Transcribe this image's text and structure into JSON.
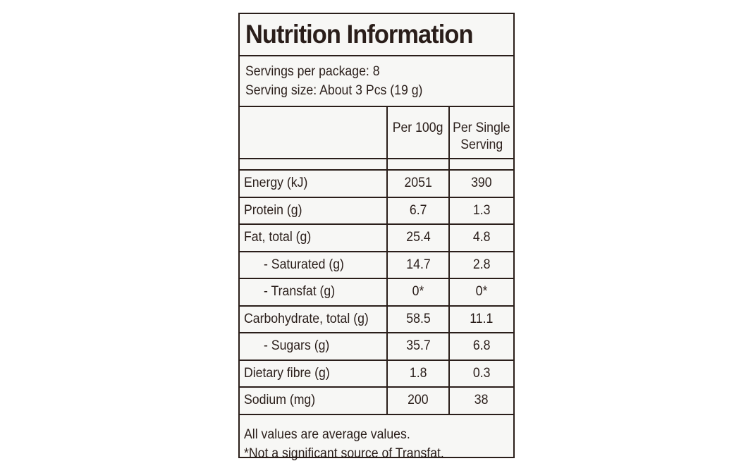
{
  "panel": {
    "title": "Nutrition Information",
    "servings_per_package": "Servings per package: 8",
    "serving_size": "Serving size: About 3 Pcs (19 g)"
  },
  "table": {
    "headers": {
      "per_100g": "Per 100g",
      "per_serving_line1": "Per Single",
      "per_serving_line2": "Serving"
    },
    "rows": [
      {
        "label": "Energy (kJ)",
        "per_100g": "2051",
        "per_serving": "390"
      },
      {
        "label": "Protein (g)",
        "per_100g": "6.7",
        "per_serving": "1.3"
      },
      {
        "label": "Fat, total (g)",
        "per_100g": "25.4",
        "per_serving": "4.8"
      },
      {
        "label": "- Saturated (g)",
        "per_100g": "14.7",
        "per_serving": "2.8"
      },
      {
        "label": "- Transfat (g)",
        "per_100g": "0*",
        "per_serving": "0*"
      },
      {
        "label": "Carbohydrate, total (g)",
        "per_100g": "58.5",
        "per_serving": "11.1"
      },
      {
        "label": "- Sugars (g)",
        "per_100g": "35.7",
        "per_serving": "6.8"
      },
      {
        "label": "Dietary fibre (g)",
        "per_100g": "1.8",
        "per_serving": "0.3"
      },
      {
        "label": "Sodium (mg)",
        "per_100g": "200",
        "per_serving": "38"
      }
    ]
  },
  "footer": {
    "note1": "All values are average values.",
    "note2": "*Not a significant source of Transfat."
  }
}
